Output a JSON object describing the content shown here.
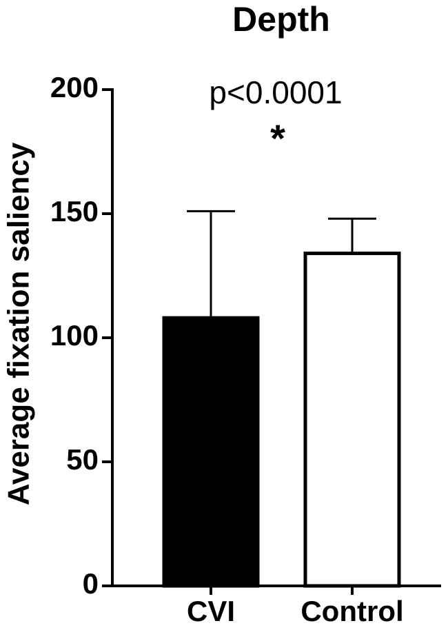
{
  "chart_data": {
    "type": "bar",
    "title": "Depth",
    "ylabel": "Average fixation saliency",
    "categories": [
      "CVI",
      "Control"
    ],
    "values": [
      108,
      134
    ],
    "errors": [
      43,
      14
    ],
    "colors": [
      "#000000",
      "#ffffff"
    ],
    "edgecolor": "#000000",
    "ylim": [
      0,
      200
    ],
    "yticks": [
      0,
      50,
      100,
      150,
      200
    ],
    "grid": false,
    "annotations": [
      "p<0.0001",
      "*"
    ]
  }
}
